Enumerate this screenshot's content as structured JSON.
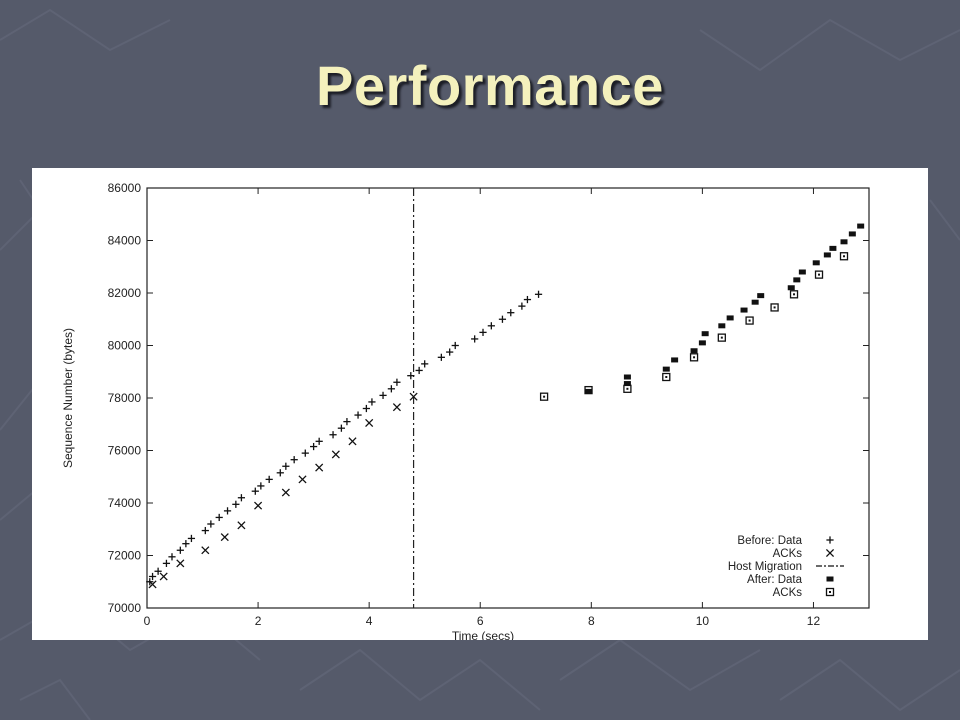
{
  "slide": {
    "title": "Performance",
    "background_color": "#555a6a",
    "title_color": "#f4f1bd"
  },
  "chart_data": {
    "type": "scatter",
    "xlabel": "Time (secs)",
    "ylabel": "Sequence Number (bytes)",
    "xlim": [
      0,
      13
    ],
    "ylim": [
      70000,
      86000
    ],
    "xticks": [
      0,
      2,
      4,
      6,
      8,
      10,
      12
    ],
    "yticks": [
      70000,
      72000,
      74000,
      76000,
      78000,
      80000,
      82000,
      84000,
      86000
    ],
    "grid": false,
    "legend_position": "bottom-right",
    "annotations": [
      {
        "type": "vertical-line",
        "x": 4.8,
        "series": "Host Migration",
        "style": "dash-dot"
      }
    ],
    "series": [
      {
        "name": "Before: Data",
        "marker": "plus",
        "points": [
          [
            0.05,
            71000
          ],
          [
            0.1,
            71200
          ],
          [
            0.2,
            71400
          ],
          [
            0.35,
            71700
          ],
          [
            0.45,
            71950
          ],
          [
            0.6,
            72200
          ],
          [
            0.7,
            72450
          ],
          [
            0.8,
            72650
          ],
          [
            1.05,
            72950
          ],
          [
            1.15,
            73200
          ],
          [
            1.3,
            73450
          ],
          [
            1.45,
            73700
          ],
          [
            1.6,
            73950
          ],
          [
            1.7,
            74200
          ],
          [
            1.95,
            74450
          ],
          [
            2.05,
            74650
          ],
          [
            2.2,
            74900
          ],
          [
            2.4,
            75150
          ],
          [
            2.5,
            75400
          ],
          [
            2.65,
            75650
          ],
          [
            2.85,
            75900
          ],
          [
            3.0,
            76150
          ],
          [
            3.1,
            76350
          ],
          [
            3.35,
            76600
          ],
          [
            3.5,
            76850
          ],
          [
            3.6,
            77100
          ],
          [
            3.8,
            77350
          ],
          [
            3.95,
            77600
          ],
          [
            4.05,
            77850
          ],
          [
            4.25,
            78100
          ],
          [
            4.4,
            78350
          ],
          [
            4.5,
            78600
          ],
          [
            4.75,
            78850
          ],
          [
            4.9,
            79050
          ],
          [
            5.0,
            79300
          ],
          [
            5.3,
            79550
          ],
          [
            5.45,
            79750
          ],
          [
            5.55,
            80000
          ],
          [
            5.9,
            80250
          ],
          [
            6.05,
            80500
          ],
          [
            6.2,
            80750
          ],
          [
            6.4,
            81000
          ],
          [
            6.55,
            81250
          ],
          [
            6.75,
            81500
          ],
          [
            6.85,
            81750
          ],
          [
            7.05,
            81950
          ]
        ]
      },
      {
        "name": "ACKs",
        "marker": "cross",
        "points": [
          [
            0.1,
            70900
          ],
          [
            0.3,
            71200
          ],
          [
            0.6,
            71700
          ],
          [
            1.05,
            72200
          ],
          [
            1.4,
            72700
          ],
          [
            1.7,
            73150
          ],
          [
            2.0,
            73900
          ],
          [
            2.5,
            74400
          ],
          [
            2.8,
            74900
          ],
          [
            3.1,
            75350
          ],
          [
            3.4,
            75850
          ],
          [
            3.7,
            76350
          ],
          [
            4.0,
            77050
          ],
          [
            4.5,
            77650
          ],
          [
            4.8,
            78050
          ]
        ]
      },
      {
        "name": "After: Data",
        "marker": "filled-square",
        "points": [
          [
            7.95,
            78250
          ],
          [
            8.65,
            78550
          ],
          [
            8.65,
            78800
          ],
          [
            9.35,
            79100
          ],
          [
            9.5,
            79450
          ],
          [
            9.85,
            79800
          ],
          [
            10.0,
            80100
          ],
          [
            10.05,
            80450
          ],
          [
            10.35,
            80750
          ],
          [
            10.5,
            81050
          ],
          [
            10.75,
            81350
          ],
          [
            10.95,
            81650
          ],
          [
            11.05,
            81900
          ],
          [
            11.6,
            82200
          ],
          [
            11.7,
            82500
          ],
          [
            11.8,
            82800
          ],
          [
            12.05,
            83150
          ],
          [
            12.25,
            83450
          ],
          [
            12.35,
            83700
          ],
          [
            12.55,
            83950
          ],
          [
            12.7,
            84250
          ],
          [
            12.85,
            84550
          ]
        ]
      },
      {
        "name": "ACKs",
        "marker": "open-square",
        "points": [
          [
            7.15,
            78050
          ],
          [
            7.95,
            78300
          ],
          [
            8.65,
            78350
          ],
          [
            9.35,
            78800
          ],
          [
            9.85,
            79550
          ],
          [
            10.35,
            80300
          ],
          [
            10.85,
            80950
          ],
          [
            11.3,
            81450
          ],
          [
            11.65,
            81950
          ],
          [
            12.1,
            82700
          ],
          [
            12.55,
            83400
          ]
        ]
      }
    ]
  }
}
